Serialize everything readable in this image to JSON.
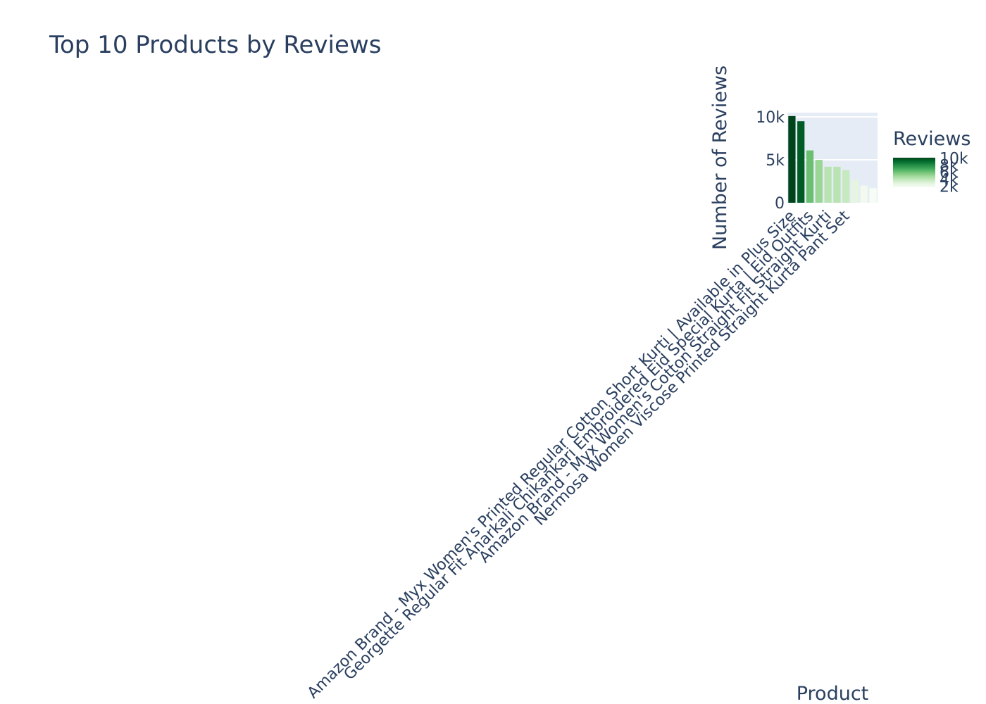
{
  "chart_data": {
    "type": "bar",
    "title": "Top 10 Products by Reviews",
    "xlabel": "Product",
    "ylabel": "Number of Reviews",
    "ylim": [
      0,
      10500
    ],
    "yticks": [
      {
        "value": 0,
        "label": "0"
      },
      {
        "value": 5000,
        "label": "5k"
      },
      {
        "value": 10000,
        "label": "10k"
      }
    ],
    "grid": true,
    "legend": {
      "title": "Reviews",
      "placement": "right",
      "colorscale": "Greens",
      "range": [
        1700,
        10100
      ],
      "ticks": [
        {
          "value": 2000,
          "label": "2k"
        },
        {
          "value": 4000,
          "label": "4k"
        },
        {
          "value": 6000,
          "label": "6k"
        },
        {
          "value": 8000,
          "label": "8k"
        },
        {
          "value": 10000,
          "label": "10k"
        }
      ]
    },
    "categories": [
      "Amazon Brand - Myx Women's Printed Regular Cotton Short Kurti | Available in Plus Size",
      "",
      "Georgette Regular Fit Anarkali Chikankari Embroidered Eid Special Kurta | Eid Outfits",
      "",
      "Amazon Brand - Myx Women's Cotton Straight Fit Straight Kurti",
      "",
      "Nermosa Women Viscose Printed Straight Kurta Pant Set",
      "",
      "",
      ""
    ],
    "label_prefix_hidden": [
      "Amazon Brand - Myx Women's Printed Regular Cotton Short Kurti | Available in Plus Size",
      "Georgette Regular Fit Anarkali Chikankari Embroidered Eid Special Kurta | Eid Outfits"
    ],
    "values": [
      10100,
      9500,
      6100,
      5000,
      4200,
      4200,
      3800,
      2700,
      2000,
      1700
    ]
  }
}
